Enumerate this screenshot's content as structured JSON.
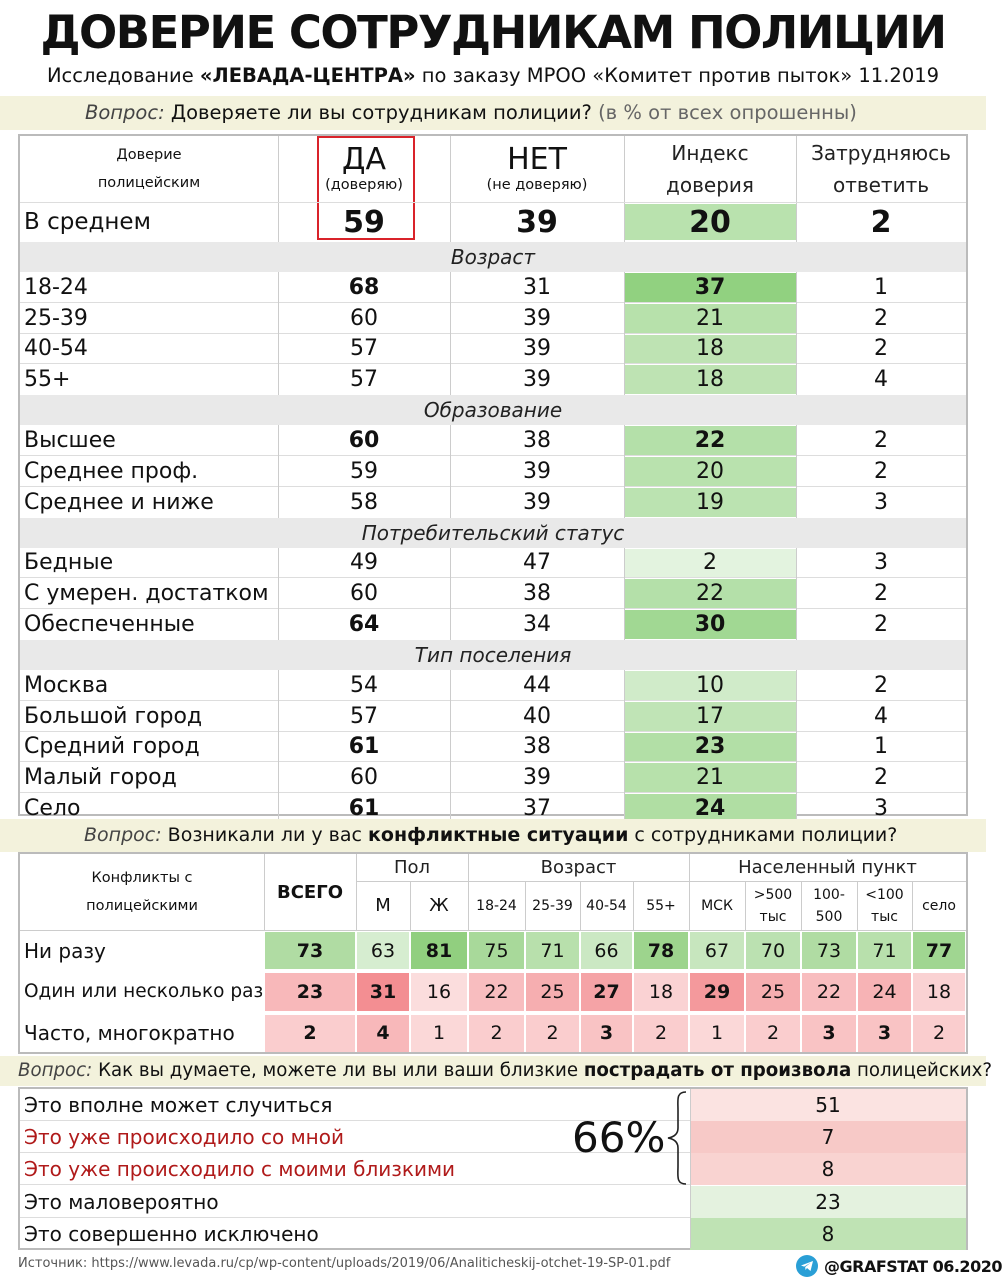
{
  "header": {
    "title": "ДОВЕРИЕ СОТРУДНИКАМ ПОЛИЦИИ",
    "subtitle_pre": "Исследование ",
    "subtitle_bold": "«ЛЕВАДА-ЦЕНТРА»",
    "subtitle_post": " по заказу МРОО «Комитет против пыток» 11.2019"
  },
  "q1": {
    "label": "Вопрос:",
    "text": " Доверяете ли вы сотрудникам полиции? ",
    "note": "(в % от всех опрошенны)"
  },
  "trust_table": {
    "header": {
      "corner_line1": "Доверие",
      "corner_line2": "полицейским",
      "yes": "ДА",
      "yes_sub": "(доверяю)",
      "no": "НЕТ",
      "no_sub": "(не доверяю)",
      "index_line1": "Индекс",
      "index_line2": "доверия",
      "hard_line1": "Затрудняюсь",
      "hard_line2": "ответить"
    },
    "average": {
      "label": "В среднем",
      "yes": "59",
      "no": "39",
      "index": "20",
      "hard": "2"
    },
    "sections": [
      {
        "title": "Возраст",
        "rows": [
          {
            "label": "18-24",
            "yes": "68",
            "no": "31",
            "index": "37",
            "hard": "1",
            "bold": true
          },
          {
            "label": "25-39",
            "yes": "60",
            "no": "39",
            "index": "21",
            "hard": "2",
            "bold": false
          },
          {
            "label": "40-54",
            "yes": "57",
            "no": "39",
            "index": "18",
            "hard": "2",
            "bold": false
          },
          {
            "label": "55+",
            "yes": "57",
            "no": "39",
            "index": "18",
            "hard": "4",
            "bold": false
          }
        ]
      },
      {
        "title": "Образование",
        "rows": [
          {
            "label": "Высшее",
            "yes": "60",
            "no": "38",
            "index": "22",
            "hard": "2",
            "bold": true
          },
          {
            "label": "Среднее проф.",
            "yes": "59",
            "no": "39",
            "index": "20",
            "hard": "2",
            "bold": false
          },
          {
            "label": "Среднее и ниже",
            "yes": "58",
            "no": "39",
            "index": "19",
            "hard": "3",
            "bold": false
          }
        ]
      },
      {
        "title": "Потребительский статус",
        "rows": [
          {
            "label": "Бедные",
            "yes": "49",
            "no": "47",
            "index": "2",
            "hard": "3",
            "bold": false
          },
          {
            "label": "С умерен. достатком",
            "yes": "60",
            "no": "38",
            "index": "22",
            "hard": "2",
            "bold": false
          },
          {
            "label": "Обеспеченные",
            "yes": "64",
            "no": "34",
            "index": "30",
            "hard": "2",
            "bold": true
          }
        ]
      },
      {
        "title": "Тип поселения",
        "rows": [
          {
            "label": "Москва",
            "yes": "54",
            "no": "44",
            "index": "10",
            "hard": "2",
            "bold": false
          },
          {
            "label": "Большой город",
            "yes": "57",
            "no": "40",
            "index": "17",
            "hard": "4",
            "bold": false
          },
          {
            "label": "Средний город",
            "yes": "61",
            "no": "38",
            "index": "23",
            "hard": "1",
            "bold": true
          },
          {
            "label": "Малый город",
            "yes": "60",
            "no": "39",
            "index": "21",
            "hard": "2",
            "bold": false
          },
          {
            "label": "Село",
            "yes": "61",
            "no": "37",
            "index": "24",
            "hard": "3",
            "bold": true
          }
        ]
      }
    ]
  },
  "q2": {
    "label": "Вопрос:",
    "text_pre": " Возникали ли у вас ",
    "text_bold": "конфликтные ситуации",
    "text_post": " с сотрудниками полиции?"
  },
  "conflict_table": {
    "corner_line1": "Конфликты с",
    "corner_line2": "полицейскими",
    "total": "ВСЕГО",
    "group_sex": "Пол",
    "group_age": "Возраст",
    "group_place": "Населенный пункт",
    "columns": [
      "М",
      "Ж",
      "18-24",
      "25-39",
      "40-54",
      "55+",
      "МСК",
      ">500 тыс",
      "100-500",
      "<100 тыс",
      "село"
    ],
    "col_line1": [
      "М",
      "Ж",
      "18-24",
      "25-39",
      "40-54",
      "55+",
      "МСК",
      ">500",
      "100-",
      "<100",
      "село"
    ],
    "col_line2": [
      "",
      "",
      "",
      "",
      "",
      "",
      "",
      "тыс",
      "500",
      "тыс",
      ""
    ],
    "rows": [
      {
        "label": "Ни разу",
        "total": "73",
        "values": [
          "63",
          "81",
          "75",
          "71",
          "66",
          "78",
          "67",
          "70",
          "73",
          "71",
          "77"
        ]
      },
      {
        "label": "Один или несколько раз",
        "total": "23",
        "values": [
          "31",
          "16",
          "22",
          "25",
          "27",
          "18",
          "29",
          "25",
          "22",
          "24",
          "18"
        ]
      },
      {
        "label": "Часто, многократно",
        "total": "2",
        "values": [
          "4",
          "1",
          "2",
          "2",
          "3",
          "2",
          "1",
          "2",
          "3",
          "3",
          "2"
        ]
      }
    ]
  },
  "q3": {
    "label": "Вопрос:",
    "text_pre": " Как вы думаете, можете ли вы или ваши близкие ",
    "text_bold": "пострадать от произвола",
    "text_post": " полицейских?"
  },
  "arbitrariness": {
    "rows": [
      {
        "label": "Это вполне может случиться",
        "value": "51",
        "red": false
      },
      {
        "label": "Это уже происходило со мной",
        "value": "7",
        "red": true
      },
      {
        "label": "Это уже происходило с моими близкими",
        "value": "8",
        "red": true
      },
      {
        "label": "Это маловероятно",
        "value": "23",
        "red": false
      },
      {
        "label": "Это совершенно исключено",
        "value": "8",
        "red": false
      }
    ],
    "total_label": "66%"
  },
  "footer": {
    "source": "Источник: https://www.levada.ru/cp/wp-content/uploads/2019/06/Analiticheskij-otchet-19-SP-01.pdf",
    "brand": "@GRAFSTAT 06.2020",
    "icon": "telegram-icon"
  },
  "colors": {
    "question_bar": "#f3f2dc",
    "section_bar": "#e9e9e9",
    "highlight_box": "#d9232a",
    "red_text": "#b01a1a",
    "telegram": "#2a9fd6"
  }
}
